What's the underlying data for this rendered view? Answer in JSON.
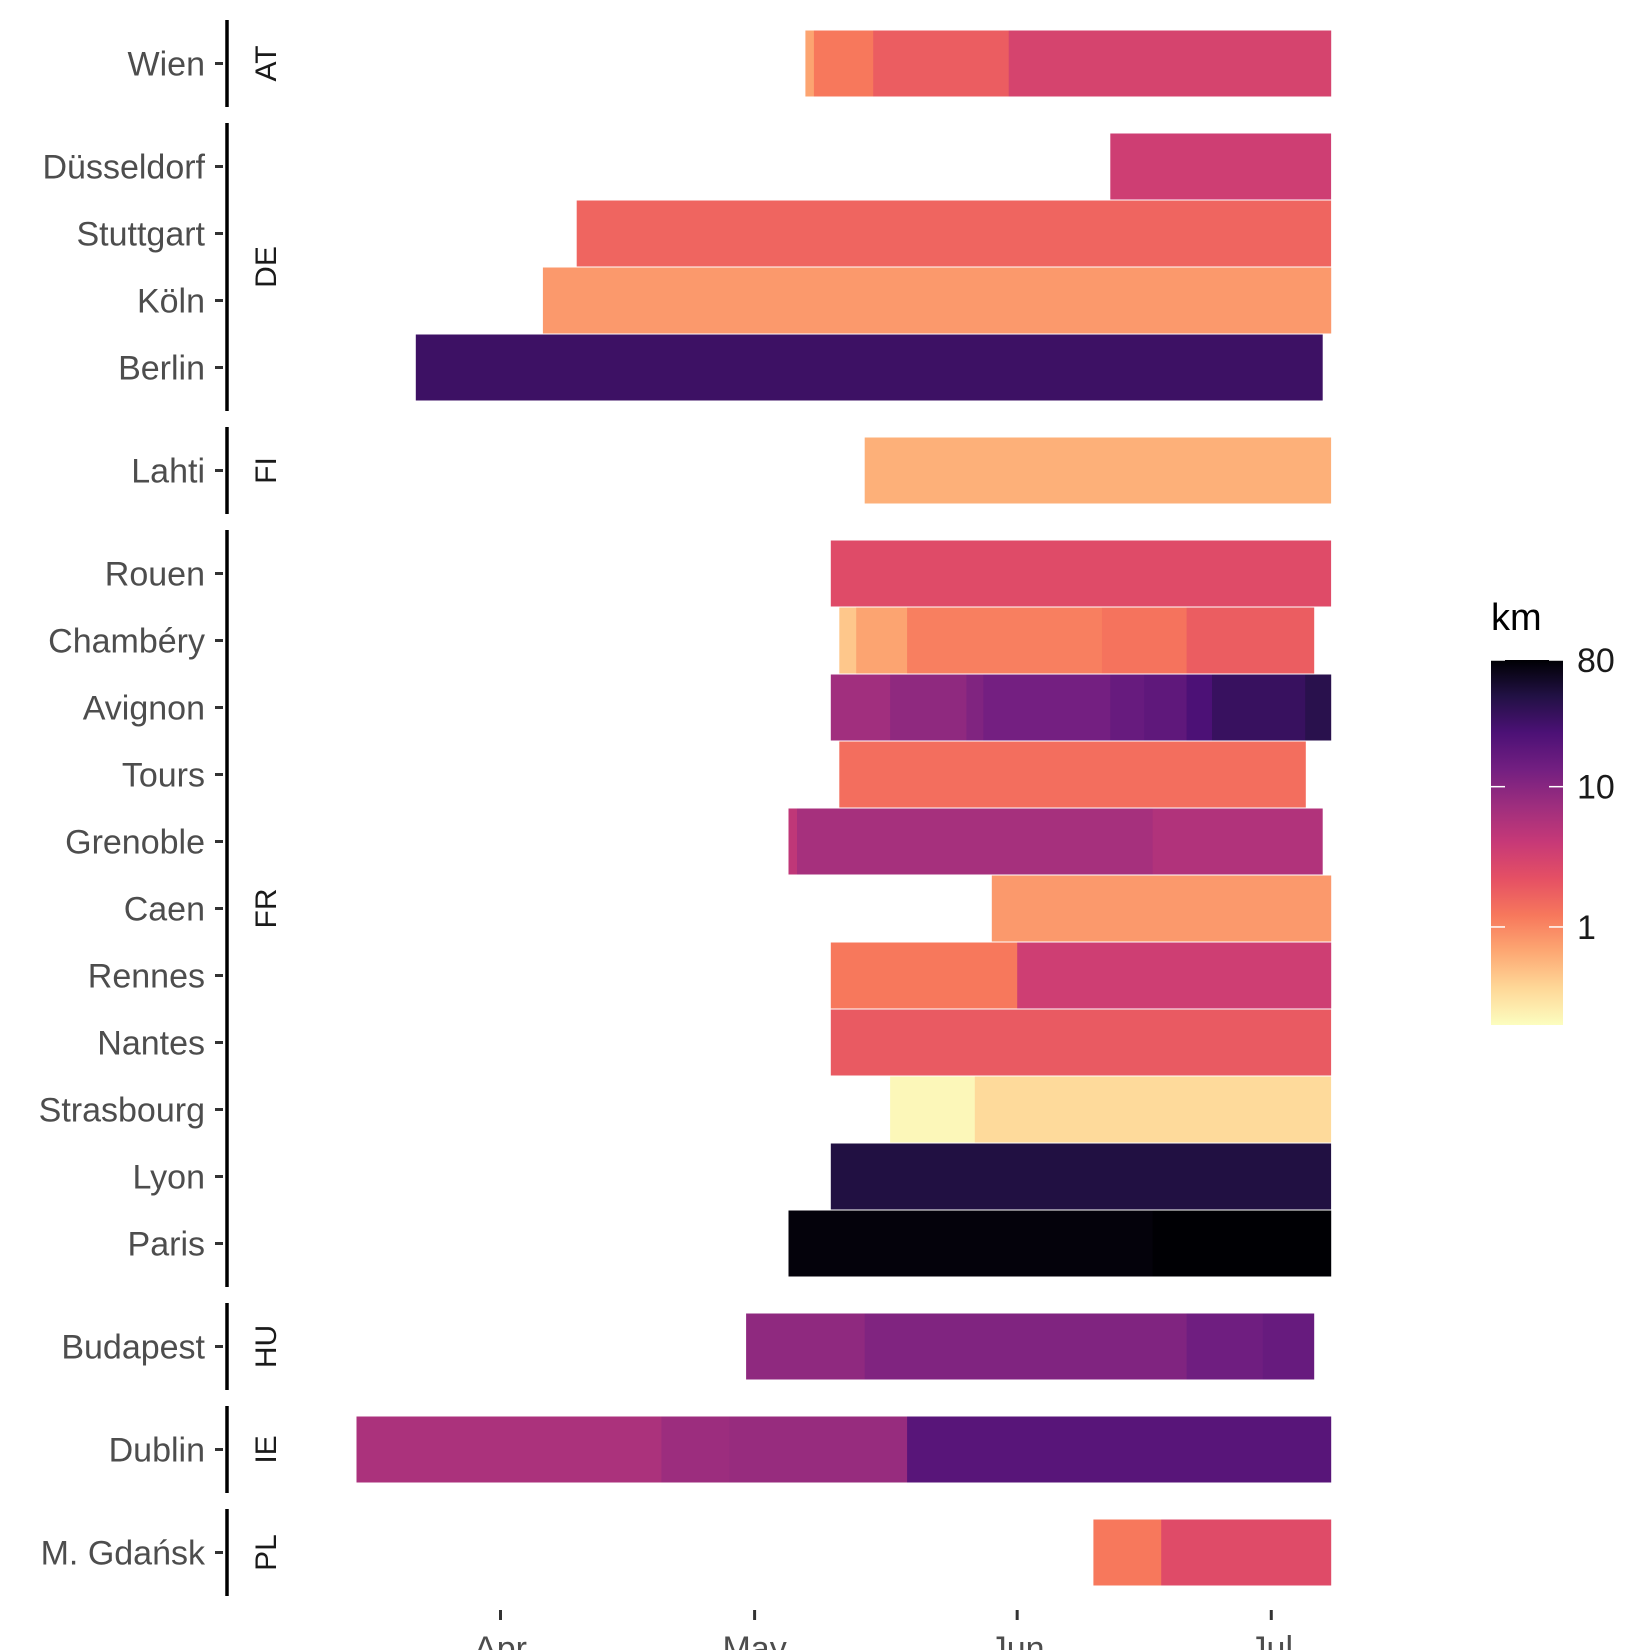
{
  "chart_data": {
    "type": "heatmap",
    "x_axis": {
      "type": "date",
      "ticks": [
        "2020-04-01",
        "2020-05-01",
        "2020-06-01",
        "2020-07-01"
      ],
      "tick_labels": [
        "Apr",
        "May",
        "Jun",
        "Jul"
      ]
    },
    "legend": {
      "title": "km",
      "scale": "log",
      "colormap": "magma-reversed",
      "range": [
        0.2,
        80
      ],
      "ticks": [
        1,
        10,
        80
      ],
      "tick_labels": [
        "1",
        "10",
        "80"
      ],
      "placement": "right"
    },
    "groups": [
      {
        "name": "AT",
        "cities": [
          {
            "name": "Wien",
            "segments": [
              [
                "2020-05-07",
                "2020-05-08",
                0.7
              ],
              [
                "2020-05-08",
                "2020-05-15",
                1.2
              ],
              [
                "2020-05-15",
                "2020-05-31",
                1.8
              ],
              [
                "2020-05-31",
                "2020-07-08",
                3.0
              ]
            ]
          }
        ]
      },
      {
        "name": "DE",
        "cities": [
          {
            "name": "Düsseldorf",
            "segments": [
              [
                "2020-06-12",
                "2020-07-08",
                3.5
              ]
            ]
          },
          {
            "name": "Stuttgart",
            "segments": [
              [
                "2020-04-10",
                "2020-07-08",
                1.6
              ]
            ]
          },
          {
            "name": "Köln",
            "segments": [
              [
                "2020-04-06",
                "2020-07-08",
                0.8
              ]
            ]
          },
          {
            "name": "Berlin",
            "segments": [
              [
                "2020-03-22",
                "2020-07-07",
                30
              ]
            ]
          }
        ]
      },
      {
        "name": "FI",
        "cities": [
          {
            "name": "Lahti",
            "segments": [
              [
                "2020-05-14",
                "2020-07-08",
                0.6
              ]
            ]
          }
        ]
      },
      {
        "name": "FR",
        "cities": [
          {
            "name": "Rouen",
            "segments": [
              [
                "2020-05-10",
                "2020-07-08",
                2.5
              ]
            ]
          },
          {
            "name": "Chambéry",
            "segments": [
              [
                "2020-05-11",
                "2020-05-13",
                0.45
              ],
              [
                "2020-05-13",
                "2020-05-19",
                0.7
              ],
              [
                "2020-05-19",
                "2020-06-11",
                1.1
              ],
              [
                "2020-06-11",
                "2020-06-21",
                1.3
              ],
              [
                "2020-06-21",
                "2020-07-06",
                1.8
              ]
            ]
          },
          {
            "name": "Avignon",
            "segments": [
              [
                "2020-05-10",
                "2020-05-17",
                7
              ],
              [
                "2020-05-17",
                "2020-05-26",
                9
              ],
              [
                "2020-05-26",
                "2020-05-28",
                11
              ],
              [
                "2020-05-28",
                "2020-06-12",
                13
              ],
              [
                "2020-06-12",
                "2020-06-16",
                16
              ],
              [
                "2020-06-16",
                "2020-06-21",
                18
              ],
              [
                "2020-06-21",
                "2020-06-24",
                24
              ],
              [
                "2020-06-24",
                "2020-07-05",
                32
              ],
              [
                "2020-07-05",
                "2020-07-08",
                40
              ]
            ]
          },
          {
            "name": "Tours",
            "segments": [
              [
                "2020-05-11",
                "2020-07-05",
                1.4
              ]
            ]
          },
          {
            "name": "Grenoble",
            "segments": [
              [
                "2020-05-05",
                "2020-05-06",
                4.5
              ],
              [
                "2020-05-06",
                "2020-06-17",
                6.5
              ],
              [
                "2020-06-17",
                "2020-07-07",
                5.5
              ]
            ]
          },
          {
            "name": "Caen",
            "segments": [
              [
                "2020-05-29",
                "2020-07-08",
                0.8
              ]
            ]
          },
          {
            "name": "Rennes",
            "segments": [
              [
                "2020-05-10",
                "2020-06-01",
                1.2
              ],
              [
                "2020-06-01",
                "2020-07-08",
                3.5
              ]
            ]
          },
          {
            "name": "Nantes",
            "segments": [
              [
                "2020-05-10",
                "2020-07-08",
                1.9
              ]
            ]
          },
          {
            "name": "Strasbourg",
            "segments": [
              [
                "2020-05-17",
                "2020-05-27",
                0.22
              ],
              [
                "2020-05-27",
                "2020-07-08",
                0.35
              ]
            ]
          },
          {
            "name": "Lyon",
            "segments": [
              [
                "2020-05-10",
                "2020-07-08",
                45
              ]
            ]
          },
          {
            "name": "Paris",
            "segments": [
              [
                "2020-05-05",
                "2020-06-17",
                75
              ],
              [
                "2020-06-17",
                "2020-07-08",
                80
              ]
            ]
          }
        ]
      },
      {
        "name": "HU",
        "cities": [
          {
            "name": "Budapest",
            "segments": [
              [
                "2020-04-30",
                "2020-05-14",
                9
              ],
              [
                "2020-05-14",
                "2020-06-21",
                11
              ],
              [
                "2020-06-21",
                "2020-06-30",
                14
              ],
              [
                "2020-06-30",
                "2020-07-06",
                16
              ]
            ]
          }
        ]
      },
      {
        "name": "IE",
        "cities": [
          {
            "name": "Dublin",
            "segments": [
              [
                "2020-03-15",
                "2020-04-20",
                6
              ],
              [
                "2020-04-20",
                "2020-04-28",
                7.5
              ],
              [
                "2020-04-28",
                "2020-05-19",
                8
              ],
              [
                "2020-05-19",
                "2020-07-08",
                20
              ]
            ]
          }
        ]
      },
      {
        "name": "PL",
        "cities": [
          {
            "name": "M. Gdańsk",
            "segments": [
              [
                "2020-06-10",
                "2020-06-18",
                1.2
              ],
              [
                "2020-06-18",
                "2020-07-08",
                2.5
              ]
            ]
          }
        ]
      }
    ]
  }
}
